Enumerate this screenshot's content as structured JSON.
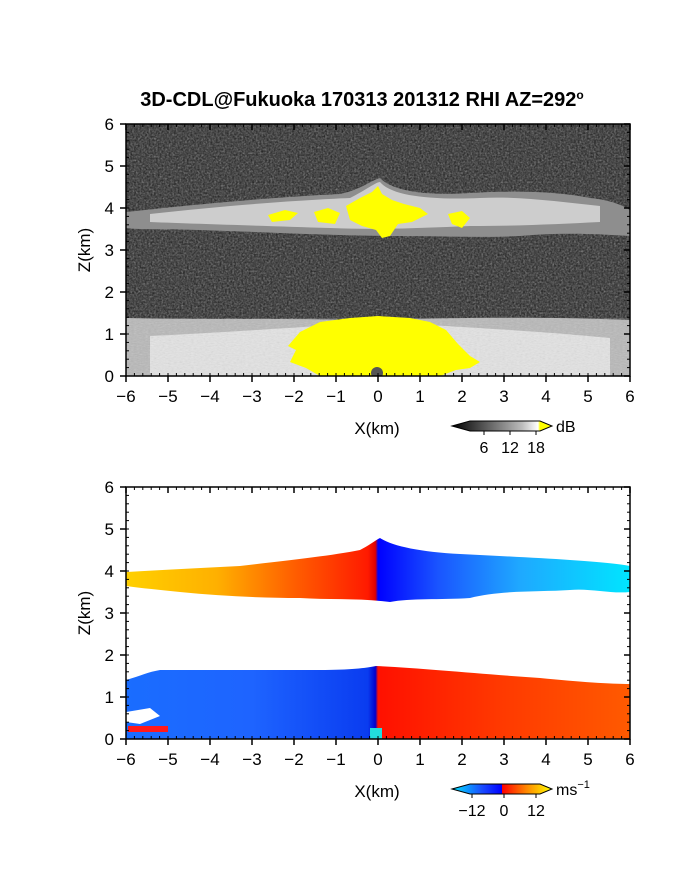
{
  "figure": {
    "title_main": "3D-CDL@Fukuoka 170313 201312 RHI AZ=292",
    "title_sup": "o"
  },
  "chart_data": [
    {
      "type": "heatmap",
      "field": "reflectivity",
      "xlabel": "X(km)",
      "ylabel": "Z(km)",
      "xlim": [
        -6,
        6
      ],
      "ylim": [
        0,
        6
      ],
      "xticks": [
        -6,
        -5,
        -4,
        -3,
        -2,
        -1,
        0,
        1,
        2,
        3,
        4,
        5,
        6
      ],
      "yticks": [
        0,
        1,
        2,
        3,
        4,
        5,
        6
      ],
      "xticklabels": [
        "−6",
        "−5",
        "−4",
        "−3",
        "−2",
        "−1",
        "0",
        "1",
        "2",
        "3",
        "4",
        "5",
        "6"
      ],
      "yticklabels": [
        "0",
        "1",
        "2",
        "3",
        "4",
        "5",
        "6"
      ],
      "colorbar": {
        "unit": "dB",
        "ticks": [
          6,
          12,
          18
        ],
        "ticklabels": [
          "6",
          "12",
          "18"
        ],
        "colors": [
          "#000000",
          "#555555",
          "#aaaaaa",
          "#ffffff",
          "#ffff00"
        ]
      },
      "features": [
        {
          "name": "upper cloud layer",
          "x_range": [
            -6,
            6
          ],
          "z_base": 3.3,
          "z_top": 4.6,
          "peak_x": 0.0,
          "peak_z": 4.6,
          "saturated_core": [
            -2.8,
            2.2
          ]
        },
        {
          "name": "lower aerosol layer",
          "x_range": [
            -6,
            6
          ],
          "z_base": 0.0,
          "z_top": 1.6,
          "saturated_core": [
            -1.8,
            2.4
          ]
        }
      ]
    },
    {
      "type": "heatmap",
      "field": "radial velocity",
      "xlabel": "X(km)",
      "ylabel": "Z(km)",
      "xlim": [
        -6,
        6
      ],
      "ylim": [
        0,
        6
      ],
      "xticks": [
        -6,
        -5,
        -4,
        -3,
        -2,
        -1,
        0,
        1,
        2,
        3,
        4,
        5,
        6
      ],
      "yticks": [
        0,
        1,
        2,
        3,
        4,
        5,
        6
      ],
      "xticklabels": [
        "−6",
        "−5",
        "−4",
        "−3",
        "−2",
        "−1",
        "0",
        "1",
        "2",
        "3",
        "4",
        "5",
        "6"
      ],
      "yticklabels": [
        "0",
        "1",
        "2",
        "3",
        "4",
        "5",
        "6"
      ],
      "colorbar": {
        "unit": "ms",
        "unit_sup": "−1",
        "ticks": [
          -12,
          0,
          12
        ],
        "ticklabels": [
          "−12",
          "0",
          "12"
        ],
        "colors": [
          "#00e5ff",
          "#0000ff",
          "#ff0000",
          "#ffff00"
        ]
      },
      "features": [
        {
          "name": "upper layer",
          "x_range": [
            -6,
            6
          ],
          "z_base": 3.3,
          "z_top": 4.6,
          "velocity_left": 10,
          "velocity_right": -12
        },
        {
          "name": "lower layer",
          "x_range": [
            -6,
            6
          ],
          "z_base": 0.0,
          "z_top": 1.6,
          "velocity_left": -8,
          "velocity_right": 8
        }
      ]
    }
  ]
}
